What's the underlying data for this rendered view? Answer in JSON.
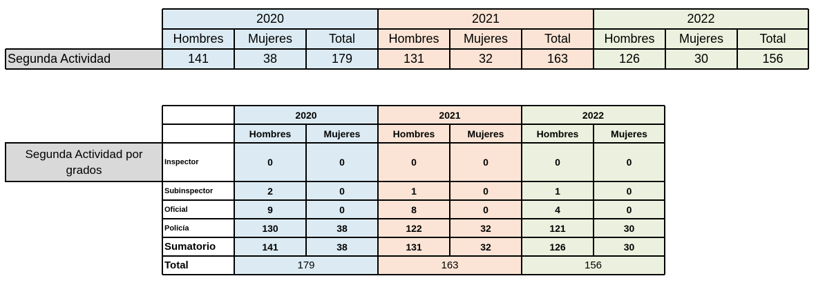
{
  "top_table": {
    "years": [
      "2020",
      "2021",
      "2022"
    ],
    "subheaders": [
      "Hombres",
      "Mujeres",
      "Total",
      "Hombres",
      "Mujeres",
      "Total",
      "Hombres",
      "Mujeres",
      "Total"
    ],
    "row_label": "Segunda Actividad",
    "row_values": [
      "141",
      "38",
      "179",
      "131",
      "32",
      "163",
      "126",
      "30",
      "156"
    ]
  },
  "bottom_table": {
    "side_label": "Segunda Actividad por grados",
    "years": [
      "2020",
      "2021",
      "2022"
    ],
    "subheaders": [
      "Hombres",
      "Mujeres",
      "Hombres",
      "Mujeres",
      "Hombres",
      "Mujeres"
    ],
    "rows": [
      {
        "label": "Inspector",
        "values": [
          "0",
          "0",
          "0",
          "0",
          "0",
          "0"
        ]
      },
      {
        "label": "Subinspector",
        "values": [
          "2",
          "0",
          "1",
          "0",
          "1",
          "0"
        ]
      },
      {
        "label": "Oficial",
        "values": [
          "9",
          "0",
          "8",
          "0",
          "4",
          "0"
        ]
      },
      {
        "label": "Policía",
        "values": [
          "130",
          "38",
          "122",
          "32",
          "121",
          "30"
        ]
      },
      {
        "label": "Sumatorio",
        "values": [
          "141",
          "38",
          "131",
          "32",
          "126",
          "30"
        ]
      }
    ],
    "total_label": "Total",
    "totals": [
      "179",
      "163",
      "156"
    ]
  },
  "colors": {
    "year_2020": "#dcebf3",
    "year_2021": "#fbe4d5",
    "year_2022": "#ebf1de",
    "label_gray": "#d9d9d9"
  }
}
